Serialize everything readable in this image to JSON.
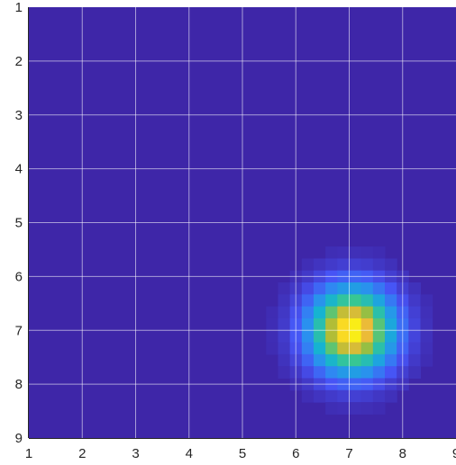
{
  "chart_data": {
    "type": "heatmap",
    "title": "",
    "xlabel": "",
    "ylabel": "",
    "xlim": [
      1,
      9
    ],
    "ylim": [
      1,
      9
    ],
    "y_direction": "reversed",
    "grid": true,
    "x_ticks": [
      "1",
      "2",
      "3",
      "4",
      "5",
      "6",
      "7",
      "8",
      "9"
    ],
    "y_ticks": [
      "1",
      "2",
      "3",
      "4",
      "5",
      "6",
      "7",
      "8",
      "9"
    ],
    "colormap": "parula",
    "resolution": [
      36,
      36
    ],
    "peak": {
      "x": 7.05,
      "y": 7.0,
      "value": 1.0
    },
    "spread_sigma": 0.55,
    "background_value": 0.0,
    "colors": {
      "background": "#3e26a8",
      "grid": "#ffffff",
      "axis": "#262626"
    }
  }
}
